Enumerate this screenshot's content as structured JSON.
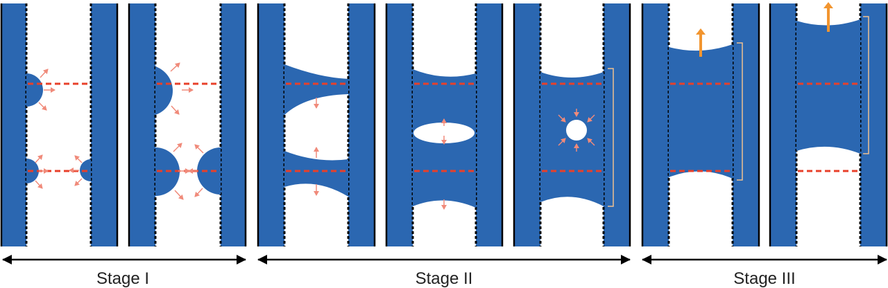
{
  "colors": {
    "fill": "#2b67b1",
    "interface": "#e8402a",
    "small_arrow": "#f08a7a",
    "big_arrow": "#f2952f",
    "bracket": "#f0c090",
    "wall_edge": "#000000",
    "stage_arrow": "#000000"
  },
  "stages": [
    {
      "label": "Stage I"
    },
    {
      "label": "Stage II"
    },
    {
      "label": "Stage III"
    }
  ]
}
